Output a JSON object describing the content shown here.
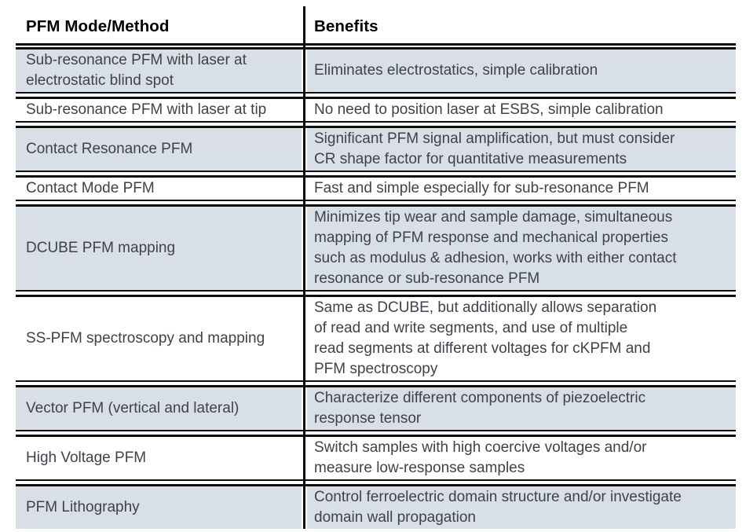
{
  "colors": {
    "row_shade": "#d8dfe7",
    "rule_black": "#0e0e0e",
    "body_text": "#3e434a",
    "header_text": "#000000"
  },
  "table": {
    "columns": [
      {
        "label": "PFM Mode/Method"
      },
      {
        "label": "Benefits"
      }
    ],
    "rows": [
      {
        "mode": "Sub-resonance PFM with laser at\nelectrostatic blind spot",
        "benefit": "Eliminates electrostatics, simple calibration",
        "shaded": true
      },
      {
        "mode": "Sub-resonance PFM with laser at tip",
        "benefit": "No need to position laser at ESBS, simple calibration",
        "shaded": false
      },
      {
        "mode": "Contact Resonance PFM",
        "benefit": "Significant PFM signal amplification, but must consider\nCR shape factor for quantitative measurements",
        "shaded": true
      },
      {
        "mode": "Contact Mode PFM",
        "benefit": "Fast and simple especially for sub-resonance PFM",
        "shaded": false
      },
      {
        "mode": "DCUBE PFM mapping",
        "benefit": "Minimizes tip wear and sample damage, simultaneous\nmapping of PFM response and mechanical properties\nsuch as modulus & adhesion, works with either contact\nresonance or sub-resonance PFM",
        "shaded": true
      },
      {
        "mode": "SS-PFM spectroscopy and mapping",
        "benefit": "Same as DCUBE, but additionally allows separation\nof read and write segments, and use of multiple\nread segments at different voltages for cKPFM and\nPFM spectroscopy",
        "shaded": false
      },
      {
        "mode": "Vector PFM (vertical and lateral)",
        "benefit": "Characterize different components of piezoelectric\nresponse tensor",
        "shaded": true
      },
      {
        "mode": "High Voltage PFM",
        "benefit": "Switch samples with high coercive voltages and/or\nmeasure low-response samples",
        "shaded": false
      },
      {
        "mode": "PFM Lithography",
        "benefit": "Control ferroelectric domain structure and/or investigate\ndomain wall propagation",
        "shaded": true
      }
    ]
  }
}
